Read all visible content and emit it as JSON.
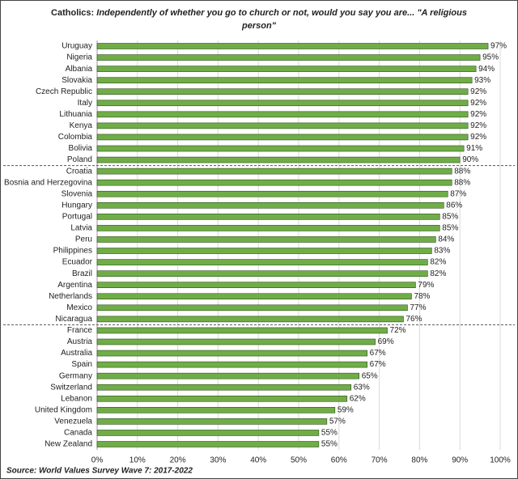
{
  "chart_data": {
    "type": "bar",
    "orientation": "horizontal",
    "title_lead": "Catholics:",
    "title": "Independently of whether you go to church or not, would you say you are... \"A religious person\"",
    "source": "Source: World Values Survey Wave 7: 2017-2022",
    "categories": [
      "Uruguay",
      "Nigeria",
      "Albania",
      "Slovakia",
      "Czech Republic",
      "Italy",
      "Lithuania",
      "Kenya",
      "Colombia",
      "Bolivia",
      "Poland",
      "Croatia",
      "Bosnia and Herzegovina",
      "Slovenia",
      "Hungary",
      "Portugal",
      "Latvia",
      "Peru",
      "Philippines",
      "Ecuador",
      "Brazil",
      "Argentina",
      "Netherlands",
      "Mexico",
      "Nicaragua",
      "France",
      "Austria",
      "Australia",
      "Spain",
      "Germany",
      "Switzerland",
      "Lebanon",
      "United Kingdom",
      "Venezuela",
      "Canada",
      "New Zealand"
    ],
    "values": [
      97,
      95,
      94,
      93,
      92,
      92,
      92,
      92,
      92,
      91,
      90,
      88,
      88,
      87,
      86,
      85,
      85,
      84,
      83,
      82,
      82,
      79,
      78,
      77,
      76,
      72,
      69,
      67,
      67,
      65,
      63,
      62,
      59,
      57,
      55,
      55
    ],
    "value_labels": [
      "97%",
      "95%",
      "94%",
      "93%",
      "92%",
      "92%",
      "92%",
      "92%",
      "92%",
      "91%",
      "90%",
      "88%",
      "88%",
      "87%",
      "86%",
      "85%",
      "85%",
      "84%",
      "83%",
      "82%",
      "82%",
      "79%",
      "78%",
      "77%",
      "76%",
      "72%",
      "69%",
      "67%",
      "67%",
      "65%",
      "63%",
      "62%",
      "59%",
      "57%",
      "55%",
      "55%"
    ],
    "color": "#70ad47",
    "xlim": [
      0,
      100
    ],
    "xticks": [
      {
        "value": 0,
        "label": "0%"
      },
      {
        "value": 10,
        "label": "10%"
      },
      {
        "value": 20,
        "label": "20%"
      },
      {
        "value": 30,
        "label": "30%"
      },
      {
        "value": 40,
        "label": "40%"
      },
      {
        "value": 50,
        "label": "50%"
      },
      {
        "value": 60,
        "label": "60%"
      },
      {
        "value": 70,
        "label": "70%"
      },
      {
        "value": 80,
        "label": "80%"
      },
      {
        "value": 90,
        "label": "90%"
      },
      {
        "value": 100,
        "label": "100%"
      }
    ],
    "grid": true
  }
}
